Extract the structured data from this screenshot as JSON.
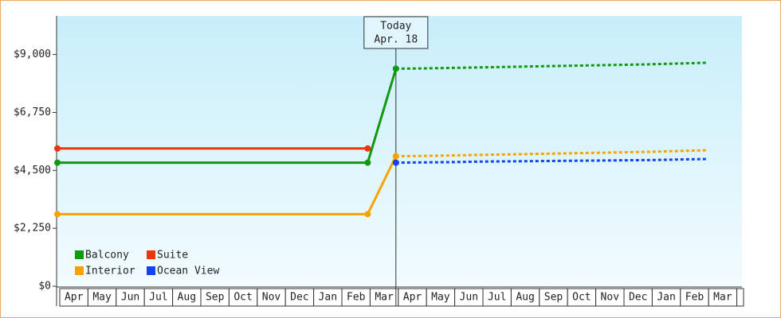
{
  "chart_data": {
    "type": "line",
    "categories": [
      "Apr",
      "May",
      "Jun",
      "Jul",
      "Aug",
      "Sep",
      "Oct",
      "Nov",
      "Dec",
      "Jan",
      "Feb",
      "Mar",
      "Apr",
      "May",
      "Jun",
      "Jul",
      "Aug",
      "Sep",
      "Oct",
      "Nov",
      "Dec",
      "Jan",
      "Feb",
      "Mar"
    ],
    "series": [
      {
        "name": "Balcony",
        "color": "#119911",
        "values": [
          4800,
          4800,
          4800,
          4800,
          4800,
          4800,
          4800,
          4800,
          4800,
          4800,
          4800,
          4800,
          8450,
          8460,
          8480,
          8500,
          8520,
          8540,
          8560,
          8580,
          8600,
          8620,
          8650,
          8680
        ]
      },
      {
        "name": "Suite",
        "color": "#ee3311",
        "values": [
          5350,
          5350,
          5350,
          5350,
          5350,
          5350,
          5350,
          5350,
          5350,
          5350,
          5350,
          5350,
          null,
          null,
          null,
          null,
          null,
          null,
          null,
          null,
          null,
          null,
          null,
          null
        ]
      },
      {
        "name": "Interior",
        "color": "#f5a300",
        "values": [
          2800,
          2800,
          2800,
          2800,
          2800,
          2800,
          2800,
          2800,
          2800,
          2800,
          2800,
          2800,
          5050,
          5060,
          5080,
          5100,
          5120,
          5140,
          5160,
          5180,
          5200,
          5220,
          5250,
          5280
        ]
      },
      {
        "name": "Ocean View",
        "color": "#1144ee",
        "values": [
          null,
          null,
          null,
          null,
          null,
          null,
          null,
          null,
          null,
          null,
          null,
          null,
          4800,
          4810,
          4820,
          4840,
          4850,
          4860,
          4870,
          4880,
          4890,
          4900,
          4920,
          4940
        ]
      }
    ],
    "ylim": [
      0,
      10500
    ],
    "yticks": [
      {
        "value": 0,
        "label": "$0"
      },
      {
        "value": 2250,
        "label": "$2,250"
      },
      {
        "value": 4500,
        "label": "$4,500"
      },
      {
        "value": 6750,
        "label": "$6,750"
      },
      {
        "value": 9000,
        "label": "$9,000"
      }
    ],
    "annotation": {
      "text": "Today",
      "date": "Apr. 18"
    },
    "legend": "bottom-left"
  }
}
